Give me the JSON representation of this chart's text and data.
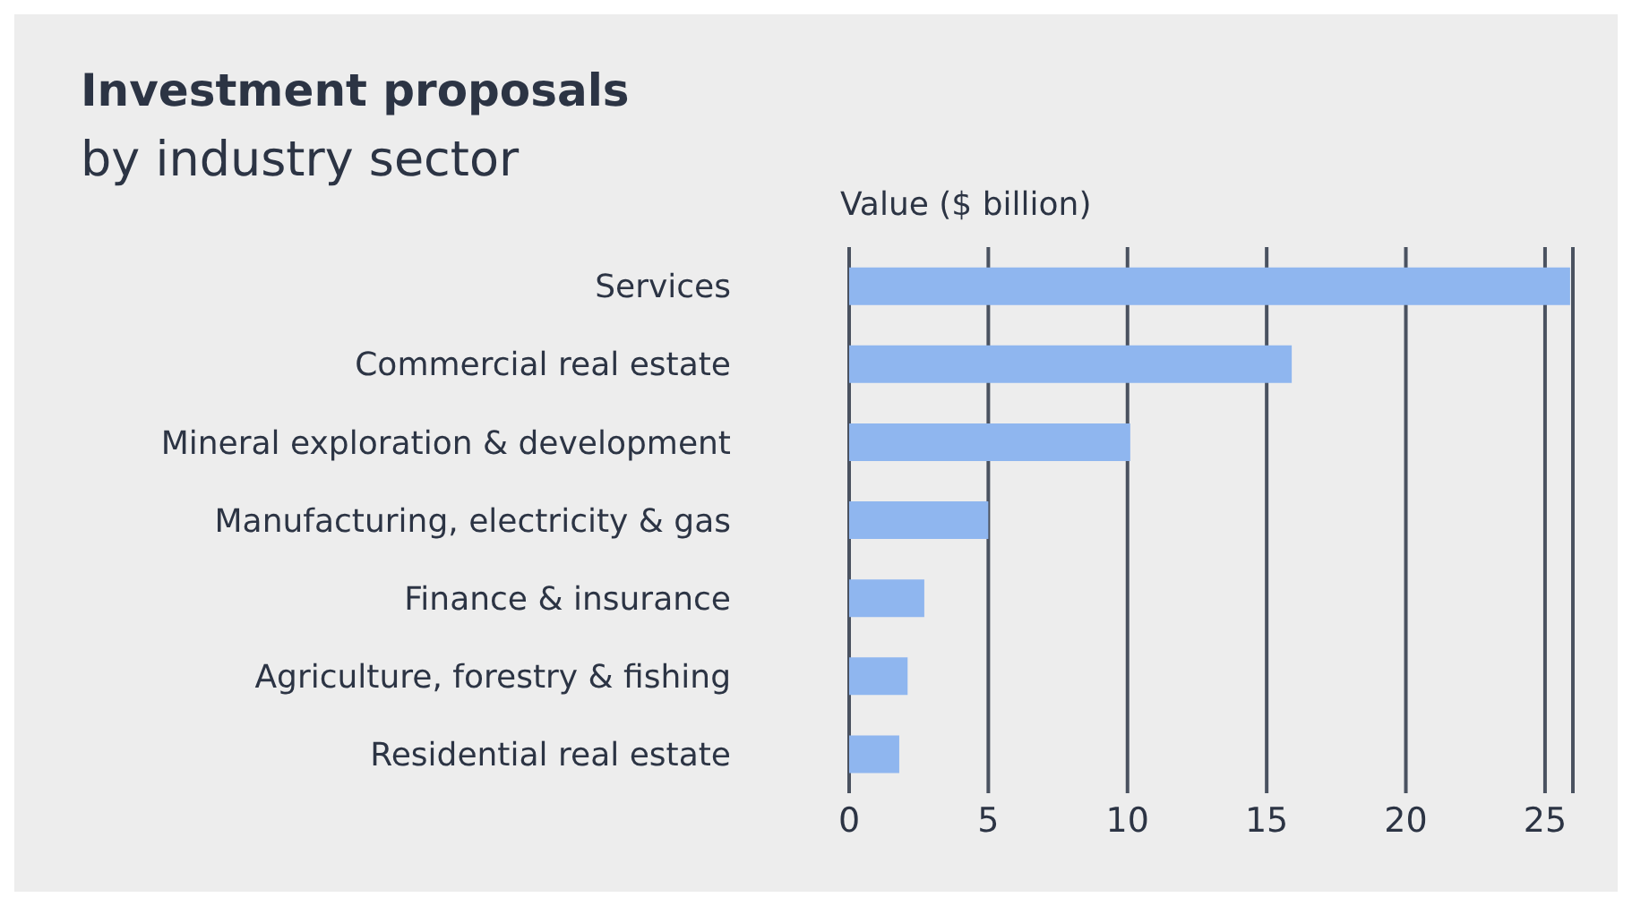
{
  "chart_data": {
    "type": "bar",
    "orientation": "horizontal",
    "title": "Investment proposals",
    "subtitle": "by industry sector",
    "xlabel": "Value ($ billion)",
    "categories": [
      "Services",
      "Commercial real estate",
      "Mineral exploration & development",
      "Manufacturing, electricity & gas",
      "Finance & insurance",
      "Agriculture, forestry & fishing",
      "Residential real estate"
    ],
    "values": [
      25.9,
      15.9,
      10.1,
      5.0,
      2.7,
      2.1,
      1.8
    ],
    "color": "#8fb6ef",
    "xlim": [
      0,
      26
    ],
    "xticks": [
      0,
      5,
      10,
      15,
      20,
      25
    ],
    "grid": "x"
  }
}
